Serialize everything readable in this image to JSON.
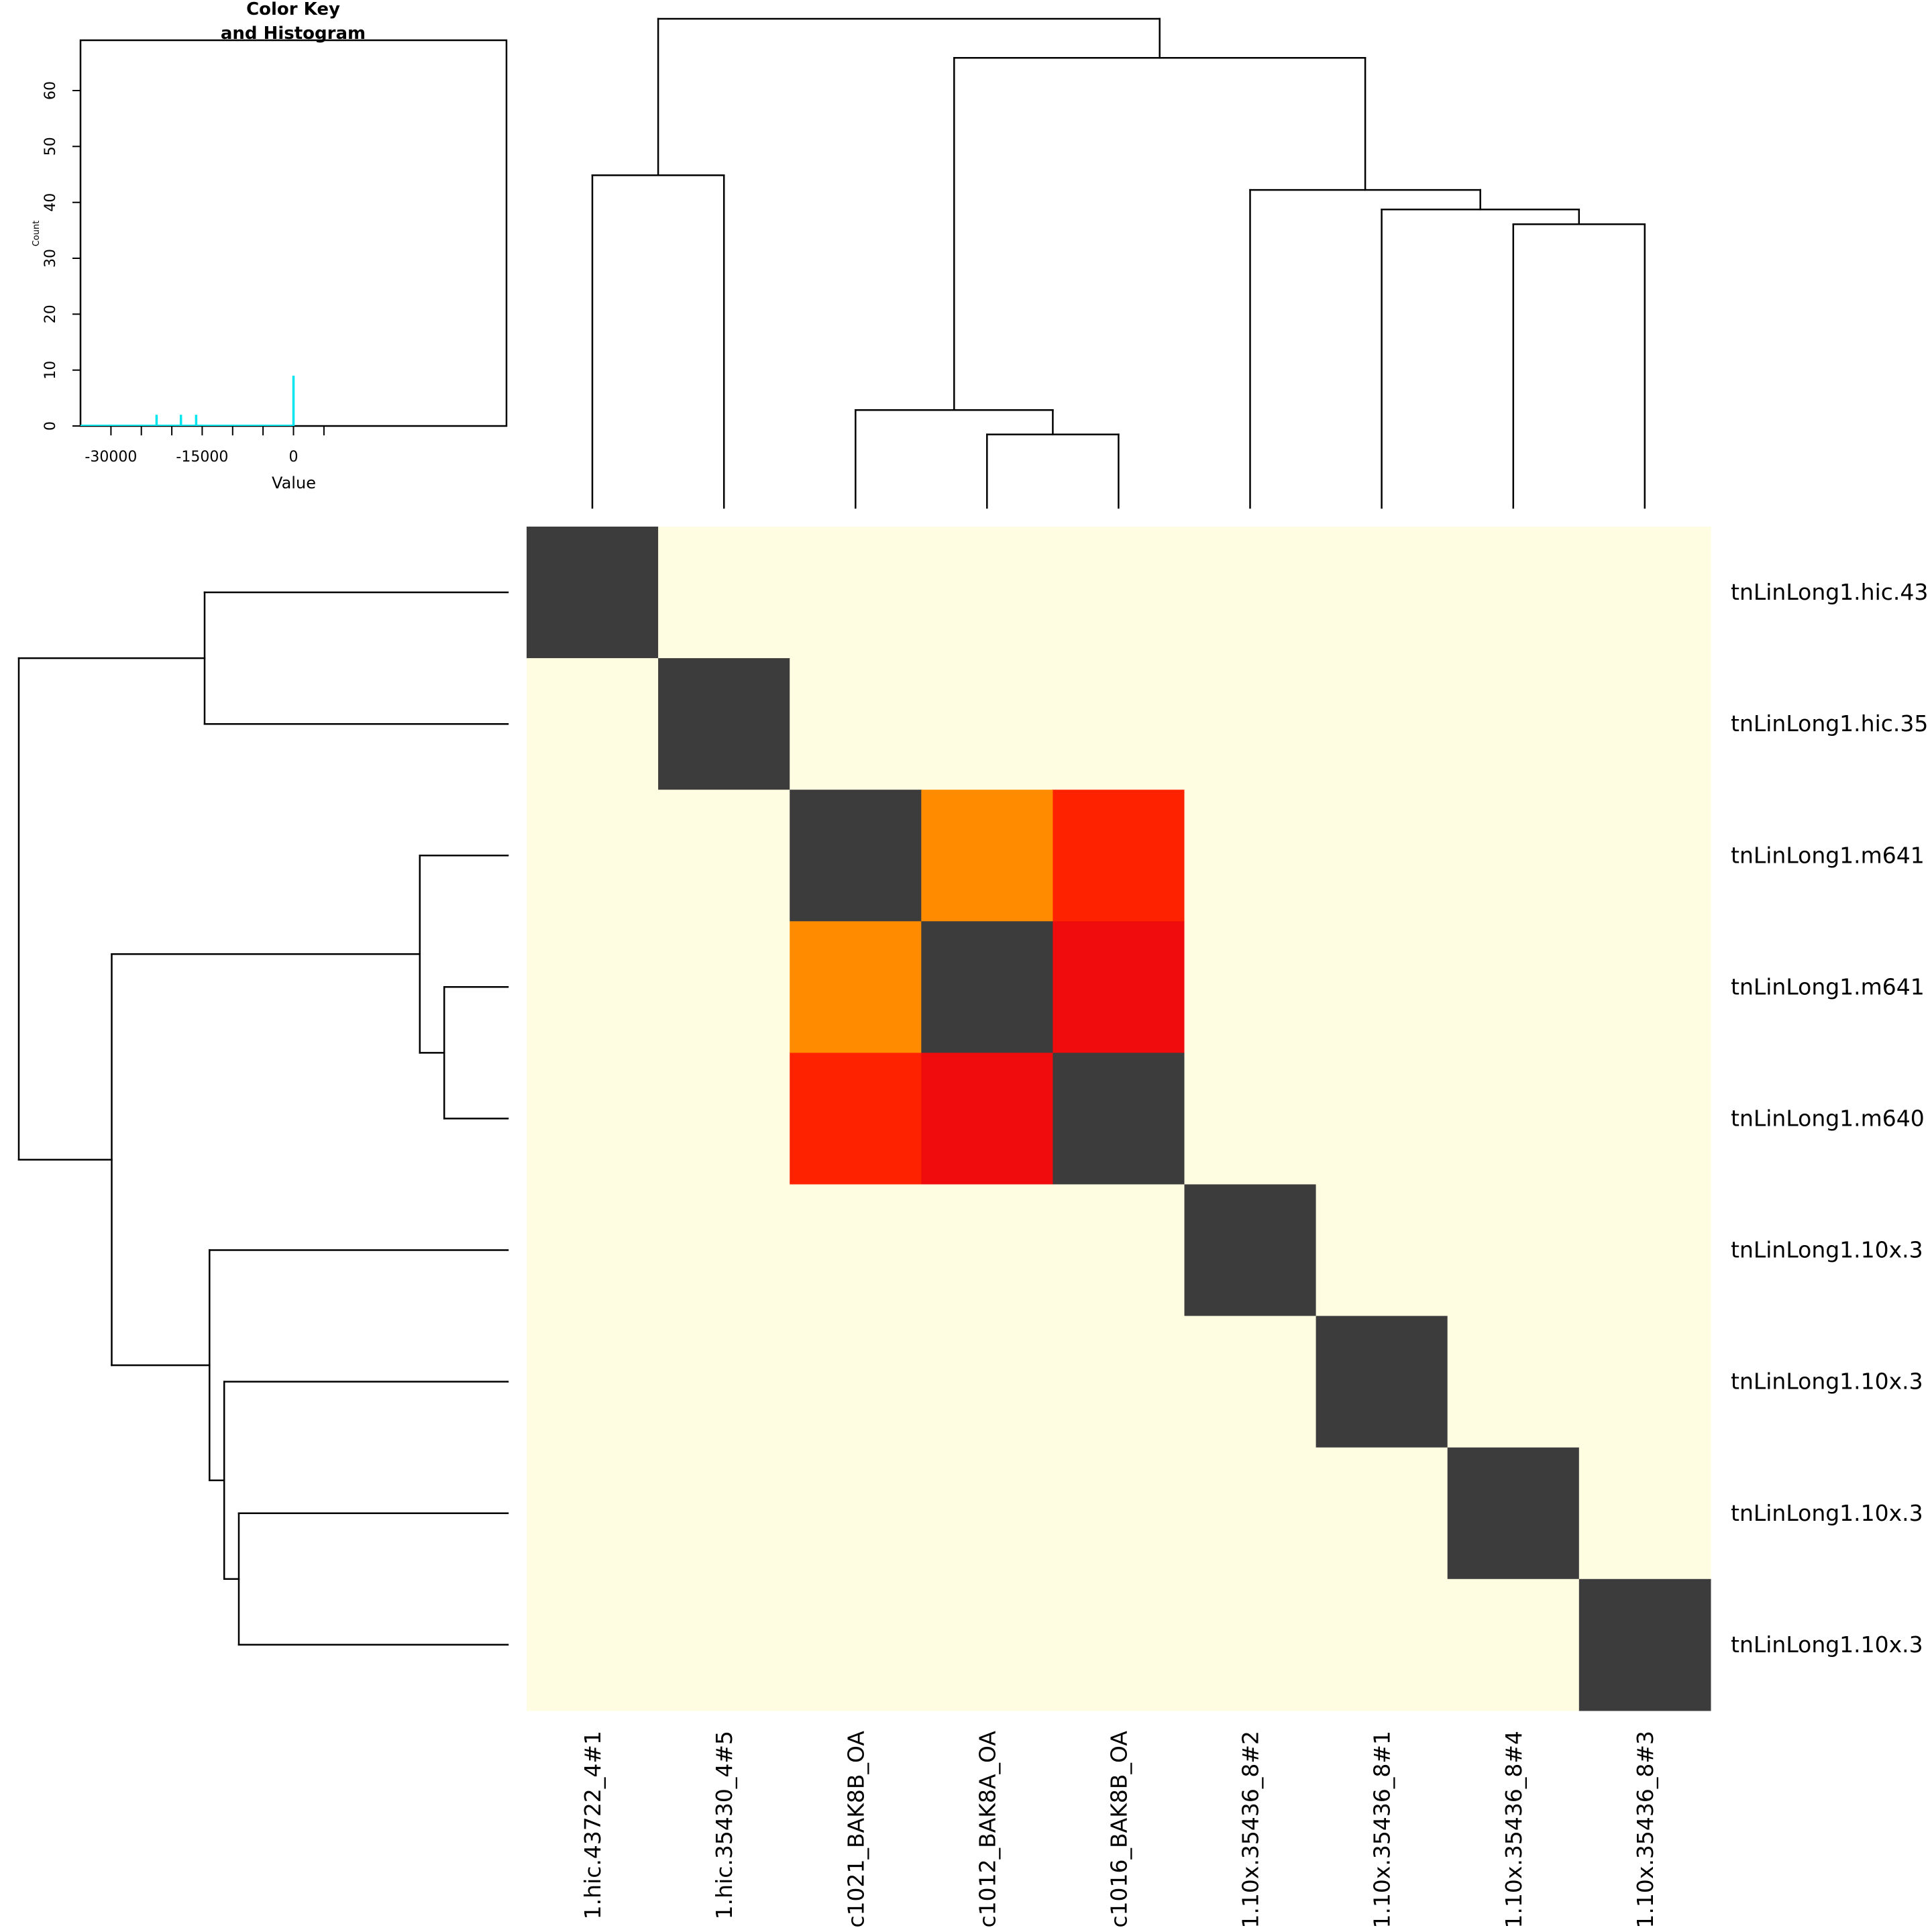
{
  "chart_data": [
    {
      "type": "heatmap",
      "row_labels": [
        "tnLinLong1.hic.43",
        "tnLinLong1.hic.35",
        "tnLinLong1.m641",
        "tnLinLong1.m641",
        "tnLinLong1.m640",
        "tnLinLong1.10x.3",
        "tnLinLong1.10x.3",
        "tnLinLong1.10x.3",
        "tnLinLong1.10x.3"
      ],
      "col_labels": [
        "1.hic.43722_4#1",
        "1.hic.35430_4#5",
        "c1021_BAK8B_OA",
        "c1012_BAK8A_OA",
        "c1016_BAK8B_OA",
        "1.10x.35436_8#2",
        "1.10x.35436_8#1",
        "1.10x.35436_8#4",
        "1.10x.35436_8#3"
      ],
      "cell_colors": [
        [
          "#3c3c3c",
          "#fffde1",
          "#fffde1",
          "#fffde1",
          "#fffde1",
          "#fffde1",
          "#fffde1",
          "#fffde1",
          "#fffde1"
        ],
        [
          "#fffde1",
          "#3c3c3c",
          "#fffde1",
          "#fffde1",
          "#fffde1",
          "#fffde1",
          "#fffde1",
          "#fffde1",
          "#fffde1"
        ],
        [
          "#fffde1",
          "#fffde1",
          "#3c3c3c",
          "#ff8c00",
          "#ff2200",
          "#fffde1",
          "#fffde1",
          "#fffde1",
          "#fffde1"
        ],
        [
          "#fffde1",
          "#fffde1",
          "#ff8c00",
          "#3c3c3c",
          "#f00c0c",
          "#fffde1",
          "#fffde1",
          "#fffde1",
          "#fffde1"
        ],
        [
          "#fffde1",
          "#fffde1",
          "#ff2200",
          "#f00c0c",
          "#3c3c3c",
          "#fffde1",
          "#fffde1",
          "#fffde1",
          "#fffde1"
        ],
        [
          "#fffde1",
          "#fffde1",
          "#fffde1",
          "#fffde1",
          "#fffde1",
          "#3c3c3c",
          "#fffde1",
          "#fffde1",
          "#fffde1"
        ],
        [
          "#fffde1",
          "#fffde1",
          "#fffde1",
          "#fffde1",
          "#fffde1",
          "#fffde1",
          "#3c3c3c",
          "#fffde1",
          "#fffde1"
        ],
        [
          "#fffde1",
          "#fffde1",
          "#fffde1",
          "#fffde1",
          "#fffde1",
          "#fffde1",
          "#fffde1",
          "#3c3c3c",
          "#fffde1"
        ],
        [
          "#fffde1",
          "#fffde1",
          "#fffde1",
          "#fffde1",
          "#fffde1",
          "#fffde1",
          "#fffde1",
          "#fffde1",
          "#3c3c3c"
        ]
      ],
      "col_dendrogram": {
        "merges": [
          [
            0,
            1,
            0.68
          ],
          [
            3,
            4,
            0.15
          ],
          [
            2,
            10,
            0.2
          ],
          [
            7,
            8,
            0.58
          ],
          [
            6,
            12,
            0.61
          ],
          [
            5,
            13,
            0.65
          ],
          [
            11,
            14,
            0.92
          ],
          [
            9,
            15,
            1.0
          ]
        ]
      },
      "row_dendrogram": {
        "merges": [
          [
            0,
            1,
            0.62
          ],
          [
            3,
            4,
            0.13
          ],
          [
            2,
            10,
            0.18
          ],
          [
            7,
            8,
            0.55
          ],
          [
            6,
            12,
            0.58
          ],
          [
            5,
            13,
            0.61
          ],
          [
            11,
            14,
            0.81
          ],
          [
            9,
            15,
            1.0
          ]
        ]
      }
    },
    {
      "type": "histogram",
      "title_lines": [
        "Color Key",
        "and Histogram"
      ],
      "xlabel": "Value",
      "ylabel": "Count",
      "xlim": [
        -35000,
        35000
      ],
      "ylim": [
        0,
        69
      ],
      "x_ticks_major": [
        -30000,
        -15000,
        0
      ],
      "x_ticks_minor": [
        -25000,
        -20000,
        -10000,
        -5000,
        5000
      ],
      "y_ticks": [
        0,
        10,
        20,
        30,
        40,
        50,
        60
      ],
      "bar_color": "#00e5ee",
      "bars": [
        {
          "x": -22500,
          "count": 2
        },
        {
          "x": -18500,
          "count": 2
        },
        {
          "x": -16000,
          "count": 2
        },
        {
          "x": 0,
          "count": 9
        }
      ]
    }
  ]
}
